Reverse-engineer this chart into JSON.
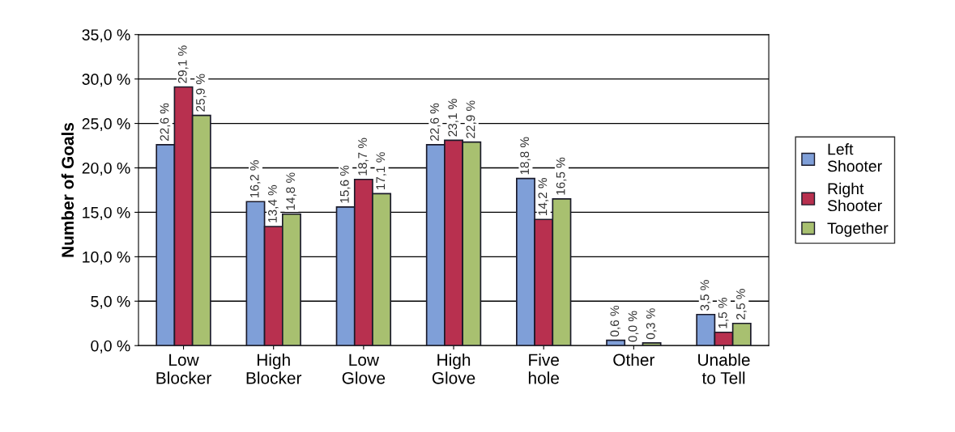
{
  "chart_data": {
    "type": "bar",
    "ylabel": "Number of Goals",
    "categories": [
      "Low Blocker",
      "High Blocker",
      "Low Glove",
      "High Glove",
      "Five hole",
      "Other",
      "Unable to Tell"
    ],
    "series": [
      {
        "name": "Left Shooter",
        "color": "#7f9fd8",
        "values": [
          22.6,
          16.2,
          15.6,
          22.6,
          18.8,
          0.6,
          3.5
        ],
        "value_labels": [
          "22,6 %",
          "16,2 %",
          "15,6 %",
          "22,6 %",
          "18,8 %",
          "0,6 %",
          "3,5 %"
        ]
      },
      {
        "name": "Right Shooter",
        "color": "#b8304f",
        "values": [
          29.1,
          13.4,
          18.7,
          23.1,
          14.2,
          0.0,
          1.5
        ],
        "value_labels": [
          "29,1 %",
          "13,4 %",
          "18,7 %",
          "23,1 %",
          "14,2 %",
          "0,0 %",
          "1,5 %"
        ]
      },
      {
        "name": "Together",
        "color": "#a8c070",
        "values": [
          25.9,
          14.8,
          17.1,
          22.9,
          16.5,
          0.3,
          2.5
        ],
        "value_labels": [
          "25,9 %",
          "14,8 %",
          "17,1 %",
          "22,9 %",
          "16,5 %",
          "0,3 %",
          "2,5 %"
        ]
      }
    ],
    "ylim": [
      0,
      35
    ],
    "yticks": [
      {
        "value": 0,
        "label": "0,0 %"
      },
      {
        "value": 5,
        "label": "5,0 %"
      },
      {
        "value": 10,
        "label": "10,0 %"
      },
      {
        "value": 15,
        "label": "15,0 %"
      },
      {
        "value": 20,
        "label": "20,0 %"
      },
      {
        "value": 25,
        "label": "25,0 %"
      },
      {
        "value": 30,
        "label": "30,0 %"
      },
      {
        "value": 35,
        "label": "35,0 %"
      }
    ],
    "grid": "y",
    "legend": "right"
  }
}
